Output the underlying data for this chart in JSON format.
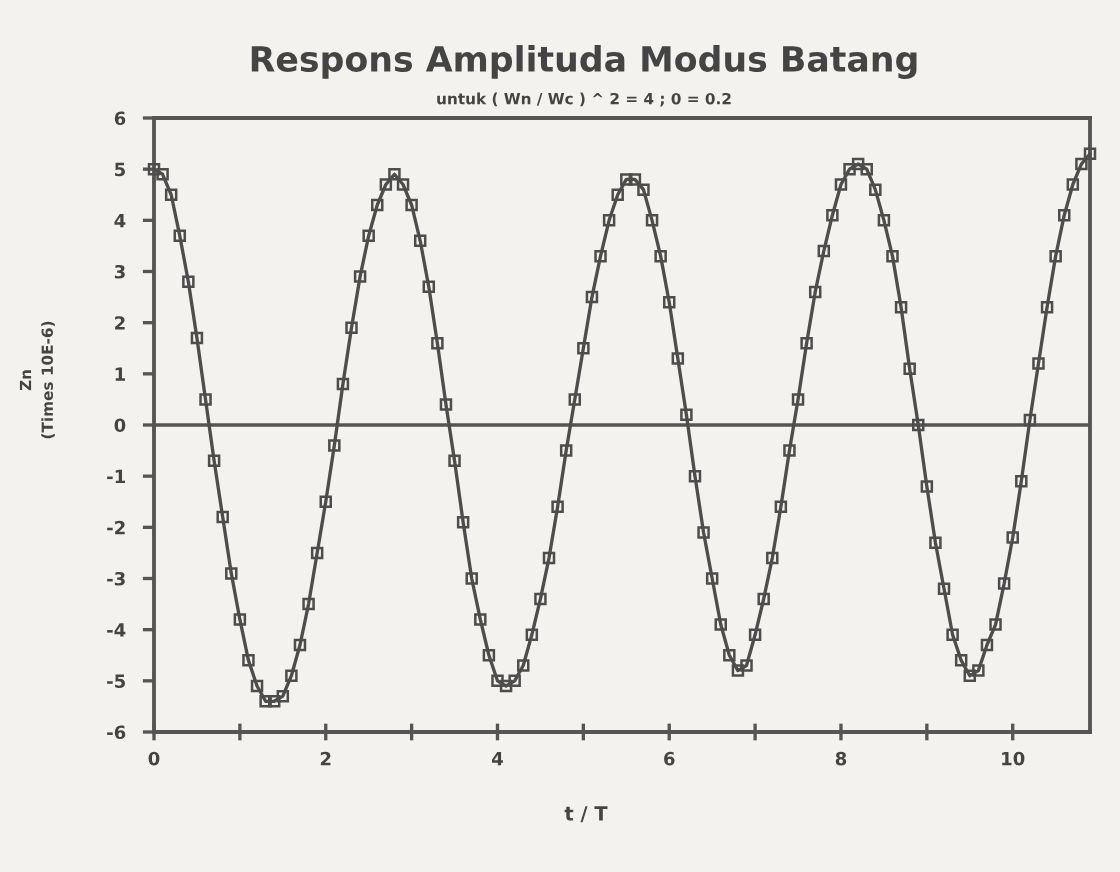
{
  "chart_data": {
    "type": "line",
    "title": "Respons Amplituda Modus Batang",
    "subtitle": "untuk ( Wn / Wc ) ^ 2 = 4 ; 0 = 0.2",
    "xlabel": "t / T",
    "ylabel": "Zn\n(Times 10E-6)",
    "x": [
      0,
      0.1,
      0.2,
      0.3,
      0.4,
      0.5,
      0.6,
      0.7,
      0.8,
      0.9,
      1.0,
      1.1,
      1.2,
      1.3,
      1.4,
      1.5,
      1.6,
      1.7,
      1.8,
      1.9,
      2.0,
      2.1,
      2.2,
      2.3,
      2.4,
      2.5,
      2.6,
      2.7,
      2.8,
      2.9,
      3.0,
      3.1,
      3.2,
      3.3,
      3.4,
      3.5,
      3.6,
      3.7,
      3.8,
      3.9,
      4.0,
      4.1,
      4.2,
      4.3,
      4.4,
      4.5,
      4.6,
      4.7,
      4.8,
      4.9,
      5.0,
      5.1,
      5.2,
      5.3,
      5.4,
      5.5,
      5.6,
      5.7,
      5.8,
      5.9,
      6.0,
      6.1,
      6.2,
      6.3,
      6.4,
      6.5,
      6.6,
      6.7,
      6.8,
      6.9,
      7.0,
      7.1,
      7.2,
      7.3,
      7.4,
      7.5,
      7.6,
      7.7,
      7.8,
      7.9,
      8.0,
      8.1,
      8.2,
      8.3,
      8.4,
      8.5,
      8.6,
      8.7,
      8.8,
      8.9,
      9.0,
      9.1,
      9.2,
      9.3,
      9.4,
      9.5,
      9.6,
      9.7,
      9.8,
      9.9,
      10.0,
      10.1,
      10.2,
      10.3,
      10.4,
      10.5,
      10.6,
      10.7,
      10.8,
      10.9
    ],
    "series": [
      {
        "color": "#4d4d4d",
        "values": [
          5.0,
          4.9,
          4.5,
          3.7,
          2.8,
          1.7,
          0.5,
          -0.7,
          -1.8,
          -2.9,
          -3.8,
          -4.6,
          -5.1,
          -5.4,
          -5.4,
          -5.3,
          -4.9,
          -4.3,
          -3.5,
          -2.5,
          -1.5,
          -0.4,
          0.8,
          1.9,
          2.9,
          3.7,
          4.3,
          4.7,
          4.9,
          4.7,
          4.3,
          3.6,
          2.7,
          1.6,
          0.4,
          -0.7,
          -1.9,
          -3.0,
          -3.8,
          -4.5,
          -5.0,
          -5.1,
          -5.0,
          -4.7,
          -4.1,
          -3.4,
          -2.6,
          -1.6,
          -0.5,
          0.5,
          1.5,
          2.5,
          3.3,
          4.0,
          4.5,
          4.8,
          4.8,
          4.6,
          4.0,
          3.3,
          2.4,
          1.3,
          0.2,
          -1.0,
          -2.1,
          -3.0,
          -3.9,
          -4.5,
          -4.8,
          -4.7,
          -4.1,
          -3.4,
          -2.6,
          -1.6,
          -0.5,
          0.5,
          1.6,
          2.6,
          3.4,
          4.1,
          4.7,
          5.0,
          5.1,
          5.0,
          4.6,
          4.0,
          3.3,
          2.3,
          1.1,
          0.0,
          -1.2,
          -2.3,
          -3.2,
          -4.1,
          -4.6,
          -4.9,
          -4.8,
          -4.3,
          -3.9,
          -3.1,
          -2.2,
          -1.1,
          0.1,
          1.2,
          2.3,
          3.3,
          4.1,
          4.7,
          5.1,
          5.3
        ]
      }
    ],
    "xlim": [
      0,
      10.9
    ],
    "ylim": [
      -6,
      6
    ],
    "xticks": [
      0,
      {
        "value": 1,
        "label": null
      },
      2,
      {
        "value": 3,
        "label": null
      },
      4,
      {
        "value": 5,
        "label": null
      },
      6,
      {
        "value": 7,
        "label": null
      },
      8,
      {
        "value": 9,
        "label": null
      },
      10
    ],
    "yticks": [
      -6,
      -5,
      -4,
      -3,
      -2,
      -1,
      0,
      1,
      2,
      3,
      4,
      5,
      6
    ],
    "ref_lines": [
      {
        "axis": "y",
        "value": 0
      }
    ],
    "marker": "square",
    "line_style": "solid"
  }
}
